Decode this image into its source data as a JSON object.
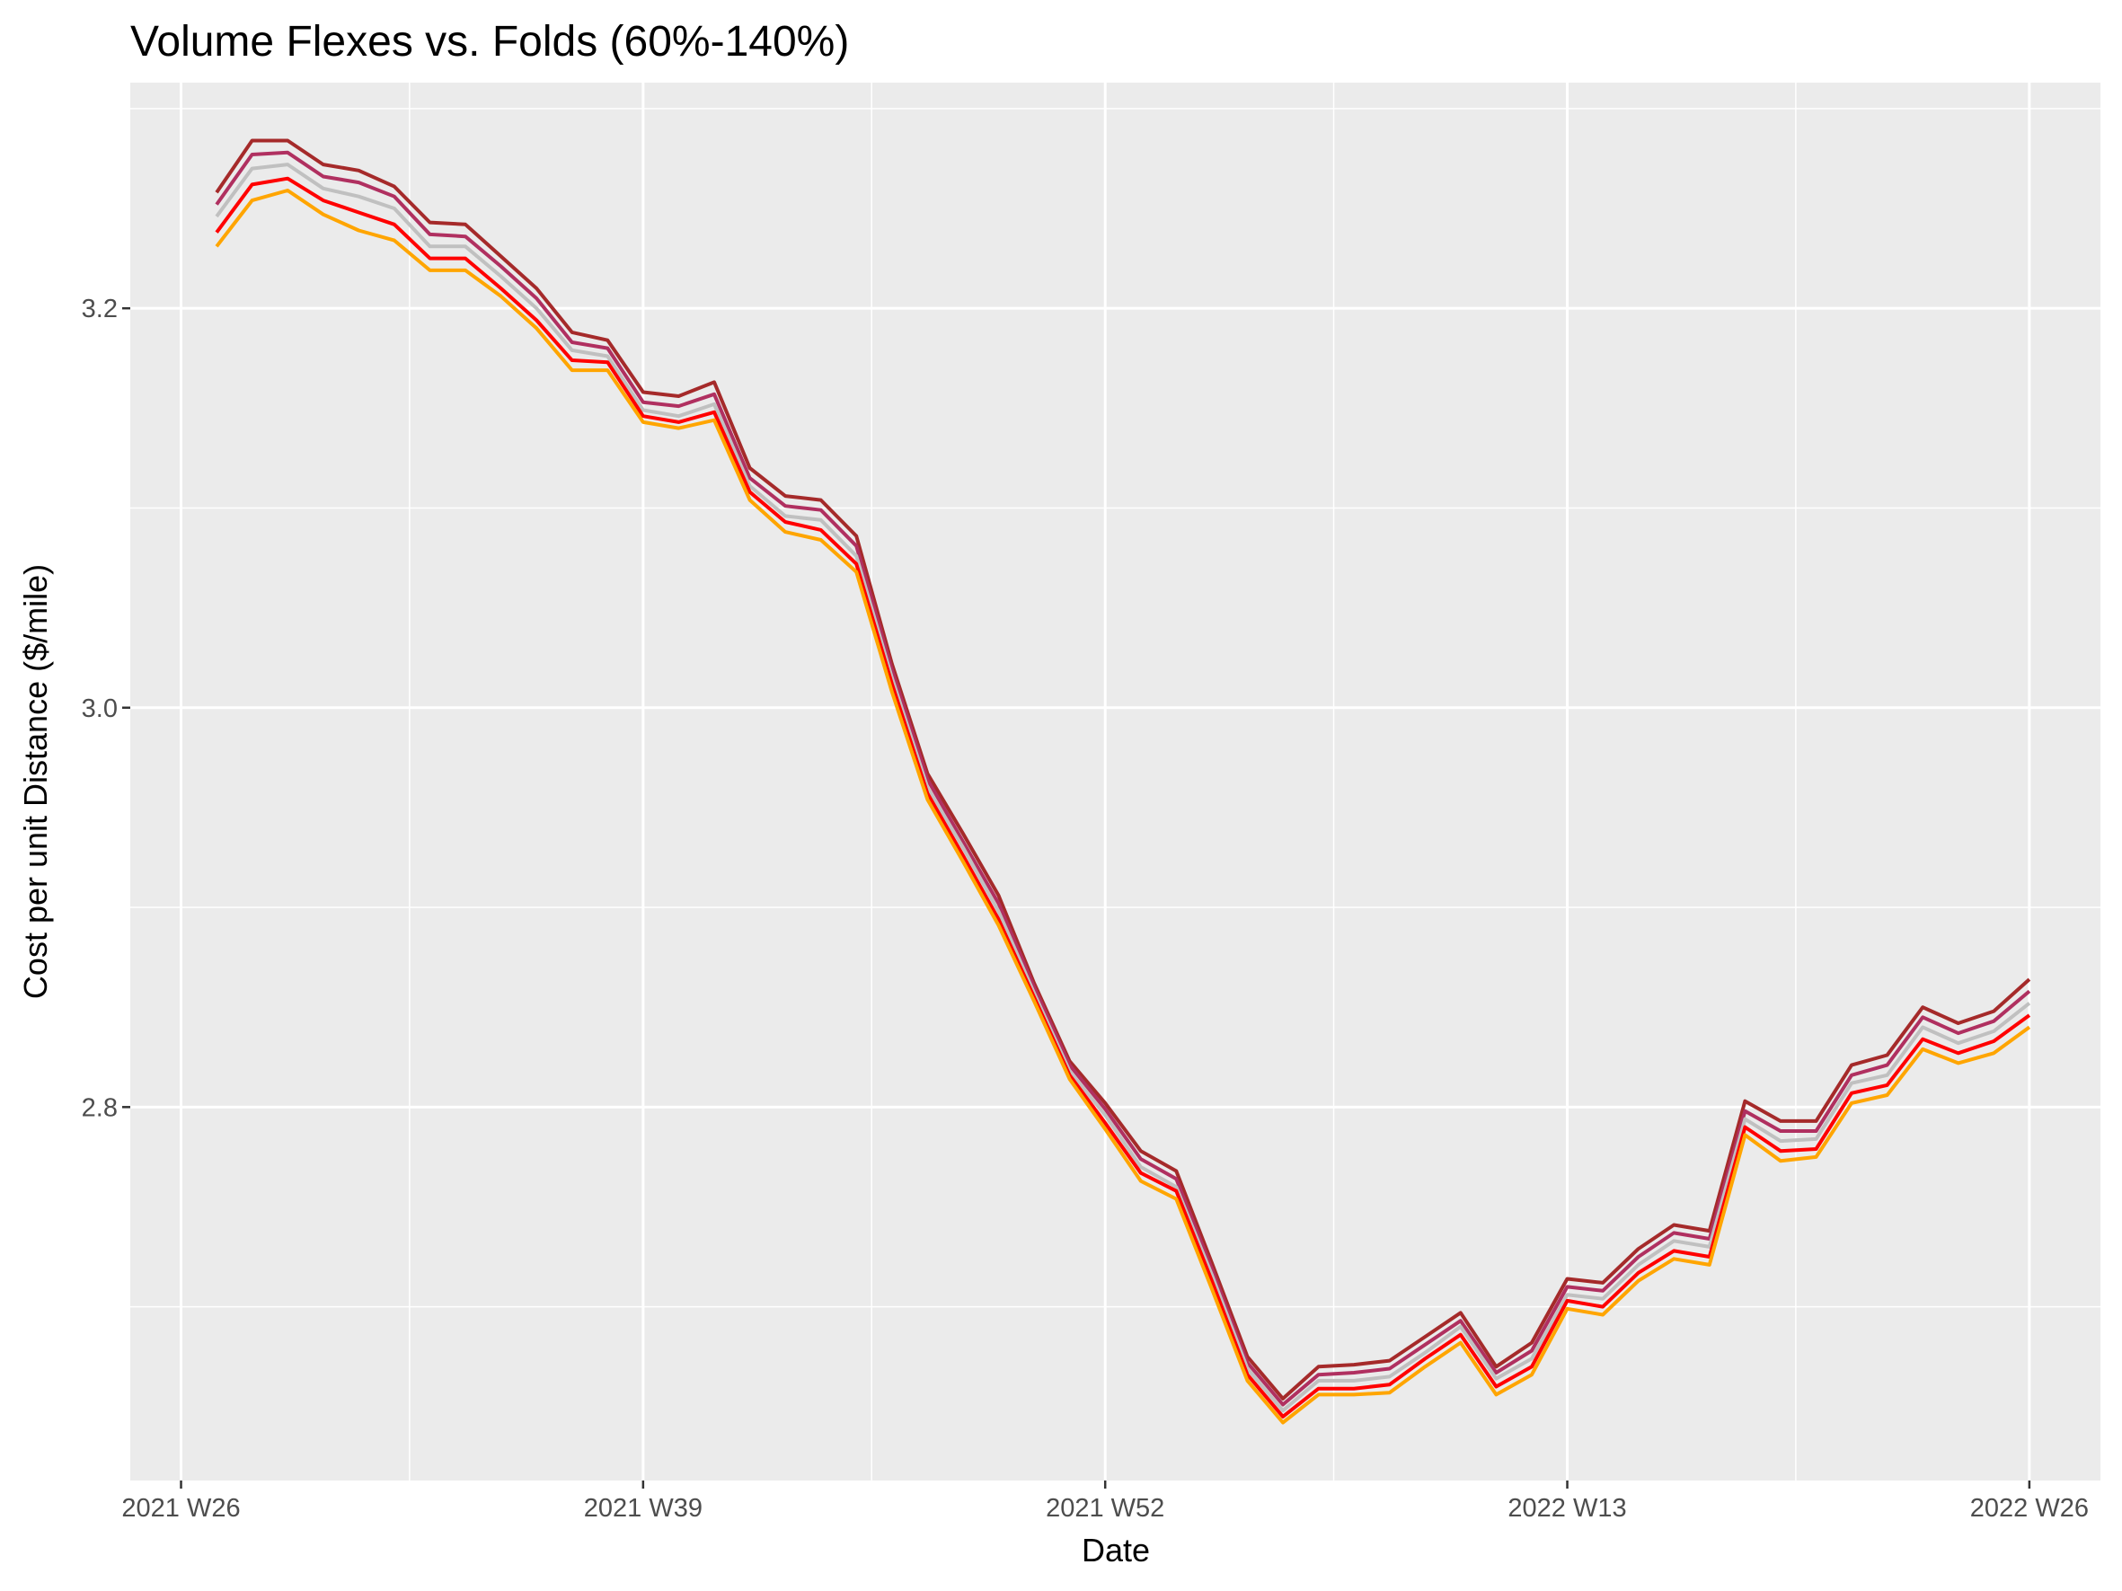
{
  "chart_data": {
    "type": "line",
    "title": "Volume Flexes vs. Folds (60%-140%)",
    "xlabel": "Date",
    "ylabel": "Cost per unit Distance ($/mile)",
    "ylim": [
      2.613,
      3.313
    ],
    "y_ticks": [
      2.8,
      3.0,
      3.2
    ],
    "y_tick_labels": [
      "2.8",
      "3.0",
      "3.2"
    ],
    "x_ticks": [
      "2021-06-28",
      "2021-09-27",
      "2021-12-27",
      "2022-03-28",
      "2022-06-27"
    ],
    "x_tick_labels": [
      "2021 W26",
      "2021 W39",
      "2021 W52",
      "2022 W13",
      "2022 W26"
    ],
    "x_minor_ticks": [
      "2021-08-12",
      "2021-11-11",
      "2022-02-10",
      "2022-05-12"
    ],
    "xlim": [
      "2021-06-18",
      "2022-07-11"
    ],
    "grid": true,
    "legend": "none",
    "x": [
      "2021-07-05",
      "2021-07-12",
      "2021-07-19",
      "2021-07-26",
      "2021-08-02",
      "2021-08-09",
      "2021-08-16",
      "2021-08-23",
      "2021-08-30",
      "2021-09-06",
      "2021-09-13",
      "2021-09-20",
      "2021-09-27",
      "2021-10-04",
      "2021-10-11",
      "2021-10-18",
      "2021-10-25",
      "2021-11-01",
      "2021-11-08",
      "2021-11-15",
      "2021-11-22",
      "2021-11-29",
      "2021-12-06",
      "2021-12-13",
      "2021-12-20",
      "2021-12-27",
      "2022-01-03",
      "2022-01-10",
      "2022-01-17",
      "2022-01-24",
      "2022-01-31",
      "2022-02-07",
      "2022-02-14",
      "2022-02-21",
      "2022-02-28",
      "2022-03-07",
      "2022-03-14",
      "2022-03-21",
      "2022-03-28",
      "2022-04-04",
      "2022-04-11",
      "2022-04-18",
      "2022-04-25",
      "2022-05-02",
      "2022-05-09",
      "2022-05-16",
      "2022-05-23",
      "2022-05-30",
      "2022-06-06",
      "2022-06-13",
      "2022-06-20",
      "2022-06-27"
    ],
    "series": [
      {
        "color": "#a52a2a",
        "values": [
          3.258,
          3.284,
          3.284,
          3.272,
          3.269,
          3.261,
          3.243,
          3.242,
          3.226,
          3.21,
          3.188,
          3.184,
          3.158,
          3.156,
          3.163,
          3.12,
          3.106,
          3.104,
          3.086,
          3.022,
          2.967,
          2.937,
          2.906,
          2.862,
          2.823,
          2.802,
          2.778,
          2.768,
          2.722,
          2.675,
          2.654,
          2.67,
          2.671,
          2.673,
          2.685,
          2.697,
          2.67,
          2.682,
          2.714,
          2.712,
          2.729,
          2.741,
          2.738,
          2.803,
          2.793,
          2.793,
          2.821,
          2.826,
          2.85,
          2.842,
          2.848,
          2.864
        ]
      },
      {
        "color": "#b03060",
        "values": [
          3.252,
          3.277,
          3.278,
          3.266,
          3.263,
          3.256,
          3.237,
          3.236,
          3.221,
          3.205,
          3.183,
          3.18,
          3.153,
          3.151,
          3.157,
          3.115,
          3.101,
          3.099,
          3.081,
          3.019,
          2.964,
          2.933,
          2.902,
          2.86,
          2.821,
          2.799,
          2.774,
          2.764,
          2.719,
          2.672,
          2.651,
          2.666,
          2.667,
          2.669,
          2.681,
          2.693,
          2.667,
          2.678,
          2.71,
          2.708,
          2.725,
          2.737,
          2.734,
          2.798,
          2.788,
          2.788,
          2.816,
          2.821,
          2.845,
          2.837,
          2.843,
          2.858
        ]
      },
      {
        "color": "#c0c0c0",
        "values": [
          3.246,
          3.27,
          3.272,
          3.26,
          3.256,
          3.25,
          3.231,
          3.231,
          3.216,
          3.2,
          3.179,
          3.176,
          3.149,
          3.146,
          3.152,
          3.111,
          3.096,
          3.094,
          3.076,
          3.015,
          2.96,
          2.93,
          2.898,
          2.857,
          2.818,
          2.796,
          2.77,
          2.76,
          2.716,
          2.669,
          2.648,
          2.663,
          2.663,
          2.665,
          2.677,
          2.69,
          2.664,
          2.674,
          2.706,
          2.704,
          2.721,
          2.733,
          2.73,
          2.794,
          2.783,
          2.784,
          2.812,
          2.816,
          2.84,
          2.832,
          2.838,
          2.852
        ]
      },
      {
        "color": "#ff0000",
        "values": [
          3.238,
          3.262,
          3.265,
          3.254,
          3.248,
          3.242,
          3.225,
          3.225,
          3.21,
          3.194,
          3.174,
          3.173,
          3.146,
          3.143,
          3.148,
          3.108,
          3.093,
          3.089,
          3.072,
          3.012,
          2.957,
          2.926,
          2.894,
          2.855,
          2.816,
          2.792,
          2.767,
          2.758,
          2.713,
          2.666,
          2.645,
          2.659,
          2.659,
          2.661,
          2.674,
          2.686,
          2.66,
          2.67,
          2.703,
          2.7,
          2.717,
          2.728,
          2.725,
          2.79,
          2.778,
          2.779,
          2.807,
          2.811,
          2.834,
          2.827,
          2.833,
          2.846
        ]
      },
      {
        "color": "#ffa500",
        "values": [
          3.231,
          3.254,
          3.259,
          3.247,
          3.239,
          3.234,
          3.219,
          3.219,
          3.206,
          3.19,
          3.169,
          3.169,
          3.143,
          3.14,
          3.144,
          3.104,
          3.088,
          3.084,
          3.068,
          3.008,
          2.954,
          2.923,
          2.891,
          2.853,
          2.814,
          2.789,
          2.763,
          2.754,
          2.709,
          2.663,
          2.642,
          2.656,
          2.656,
          2.657,
          2.67,
          2.682,
          2.656,
          2.666,
          2.699,
          2.696,
          2.713,
          2.724,
          2.721,
          2.786,
          2.773,
          2.775,
          2.802,
          2.806,
          2.829,
          2.822,
          2.827,
          2.84
        ]
      }
    ]
  }
}
